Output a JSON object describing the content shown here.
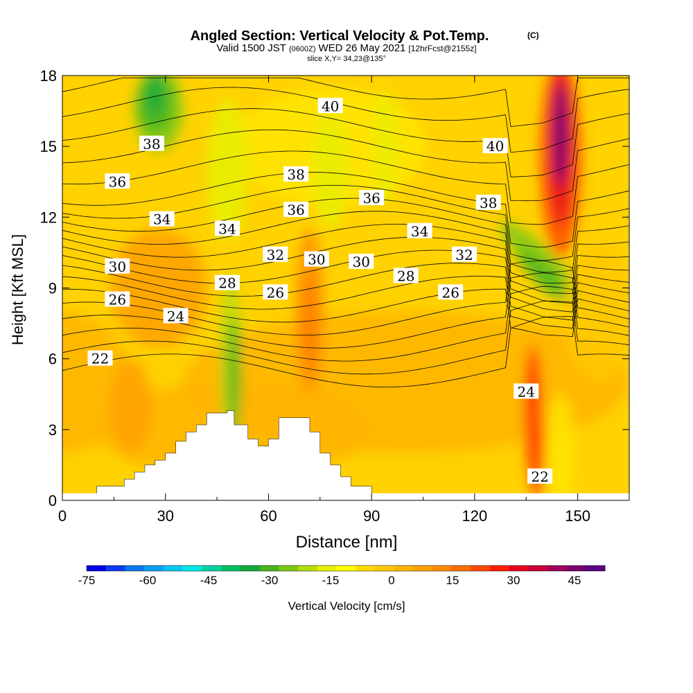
{
  "chart_data": {
    "type": "heatmap",
    "title": "Angled Section: Vertical Velocity & Pot.Temp.",
    "title_mark": "(C)",
    "subtitle_parts": [
      "Valid 1500 JST",
      "(0600Z)",
      "WED 26 May 2021",
      "[12hrFcst@2155z]"
    ],
    "subtitle2": "slice X,Y= 34,23@135°",
    "xlabel": "Distance [nm]",
    "ylabel": "Height [Kft MSL]",
    "xlim": [
      0,
      165
    ],
    "ylim": [
      0,
      18
    ],
    "xticks": [
      "0",
      "30",
      "60",
      "90",
      "120",
      "150"
    ],
    "yticks": [
      "0",
      "3",
      "6",
      "9",
      "12",
      "15",
      "18"
    ],
    "colorbar": {
      "label": "Vertical Velocity [cm/s]",
      "range": [
        -75,
        52.5
      ],
      "tick_labels": [
        "-75",
        "-60",
        "-45",
        "-30",
        "-15",
        "0",
        "15",
        "30",
        "45"
      ],
      "colors": [
        "#0000e6",
        "#0a3cf5",
        "#0a78f0",
        "#00a0f5",
        "#00c8f0",
        "#00e6e6",
        "#00d2a0",
        "#00be64",
        "#14aa3c",
        "#46b41e",
        "#78c814",
        "#b4dc0a",
        "#e6f000",
        "#ffff00",
        "#ffdc00",
        "#ffc800",
        "#ffb400",
        "#ffa000",
        "#ff8c00",
        "#ff6e00",
        "#ff4b00",
        "#ff1e00",
        "#e6001e",
        "#c8003c",
        "#a0005a",
        "#78006e",
        "#5a0082"
      ]
    },
    "shading_description": "vertical velocity mostly weakly positive (yellow-orange), downdraft (green) near x 20-30 upper levels and x 45-55 lower levels, strong updraft (red-purple) near x 140-150 upper levels and x 135-140 lower levels",
    "terrain_heights": [
      {
        "x": 10,
        "y": 0.6
      },
      {
        "x": 18,
        "y": 0.9
      },
      {
        "x": 21,
        "y": 1.2
      },
      {
        "x": 24,
        "y": 1.5
      },
      {
        "x": 27,
        "y": 1.7
      },
      {
        "x": 30,
        "y": 2.0
      },
      {
        "x": 33,
        "y": 2.5
      },
      {
        "x": 36,
        "y": 2.9
      },
      {
        "x": 39,
        "y": 3.2
      },
      {
        "x": 42,
        "y": 3.7
      },
      {
        "x": 48,
        "y": 3.8
      },
      {
        "x": 50,
        "y": 3.2
      },
      {
        "x": 54,
        "y": 2.6
      },
      {
        "x": 57,
        "y": 2.3
      },
      {
        "x": 60,
        "y": 2.6
      },
      {
        "x": 63,
        "y": 3.5
      },
      {
        "x": 69,
        "y": 3.5
      },
      {
        "x": 72,
        "y": 2.9
      },
      {
        "x": 75,
        "y": 2.0
      },
      {
        "x": 78,
        "y": 1.5
      },
      {
        "x": 81,
        "y": 1.0
      },
      {
        "x": 84,
        "y": 0.6
      },
      {
        "x": 90,
        "y": 0.3
      }
    ],
    "contour_labels": [
      {
        "text": "40",
        "x": 78,
        "y": 16.7
      },
      {
        "text": "40",
        "x": 126,
        "y": 15.0
      },
      {
        "text": "38",
        "x": 26,
        "y": 15.1
      },
      {
        "text": "38",
        "x": 68,
        "y": 13.8
      },
      {
        "text": "38",
        "x": 124,
        "y": 12.6
      },
      {
        "text": "36",
        "x": 16,
        "y": 13.5
      },
      {
        "text": "36",
        "x": 68,
        "y": 12.3
      },
      {
        "text": "36",
        "x": 90,
        "y": 12.8
      },
      {
        "text": "34",
        "x": 29,
        "y": 11.9
      },
      {
        "text": "34",
        "x": 48,
        "y": 11.5
      },
      {
        "text": "34",
        "x": 104,
        "y": 11.4
      },
      {
        "text": "32",
        "x": 62,
        "y": 10.4
      },
      {
        "text": "32",
        "x": 117,
        "y": 10.4
      },
      {
        "text": "30",
        "x": 16,
        "y": 9.9
      },
      {
        "text": "30",
        "x": 74,
        "y": 10.2
      },
      {
        "text": "30",
        "x": 87,
        "y": 10.1
      },
      {
        "text": "28",
        "x": 48,
        "y": 9.2
      },
      {
        "text": "28",
        "x": 100,
        "y": 9.5
      },
      {
        "text": "26",
        "x": 16,
        "y": 8.5
      },
      {
        "text": "26",
        "x": 62,
        "y": 8.8
      },
      {
        "text": "26",
        "x": 113,
        "y": 8.8
      },
      {
        "text": "24",
        "x": 33,
        "y": 7.8
      },
      {
        "text": "24",
        "x": 135,
        "y": 4.6
      },
      {
        "text": "22",
        "x": 11,
        "y": 6.0
      },
      {
        "text": "22",
        "x": 139,
        "y": 1.0
      }
    ]
  }
}
